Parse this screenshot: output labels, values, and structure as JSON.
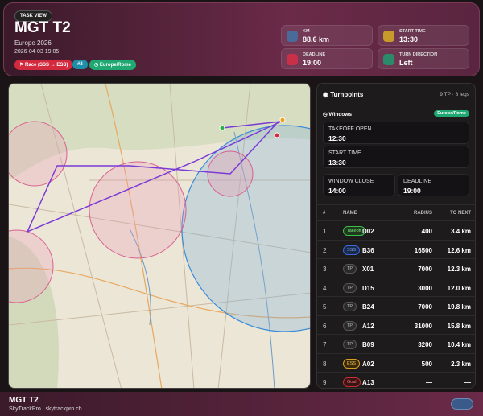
{
  "header": {
    "tag": "TASK VIEW",
    "title": "MGT T2",
    "subtitle": "Europe 2026",
    "datetime": "2026-04-03 19:05",
    "badges": [
      "Race (SSS → ESS)",
      "#2",
      "Europe/Rome"
    ]
  },
  "stats": [
    {
      "label": "KM",
      "value": "88.6 km"
    },
    {
      "label": "START TIME",
      "value": "13:30"
    },
    {
      "label": "DEADLINE",
      "value": "19:00"
    },
    {
      "label": "TURN DIRECTION",
      "value": "Left"
    }
  ],
  "turnpoints": {
    "title": "Turnpoints",
    "summary": "9 TP · 8 legs",
    "windows": {
      "title": "Windows",
      "timezone": "Europe/Rome",
      "items": [
        {
          "label": "TAKEOFF OPEN",
          "value": "12:30"
        },
        {
          "label": "START TIME",
          "value": "13:30"
        },
        {
          "label": "WINDOW CLOSE",
          "value": "14:00"
        },
        {
          "label": "DEADLINE",
          "value": "19:00"
        }
      ]
    },
    "columns": [
      "#",
      "NAME",
      "RADIUS",
      "TO NEXT"
    ],
    "rows": [
      [
        1,
        "Takeoff",
        "D02",
        400,
        "3.4 km"
      ],
      [
        2,
        "SSS",
        "B36",
        16500,
        "12.6 km"
      ],
      [
        3,
        "TP",
        "X01",
        7000,
        "12.3 km"
      ],
      [
        4,
        "TP",
        "D15",
        3000,
        "12.0 km"
      ],
      [
        5,
        "TP",
        "B24",
        7000,
        "19.8 km"
      ],
      [
        6,
        "TP",
        "A12",
        31000,
        "15.8 km"
      ],
      [
        7,
        "TP",
        "B09",
        3200,
        "10.4 km"
      ],
      [
        8,
        "ESS",
        "A02",
        500,
        "2.3 km"
      ],
      [
        9,
        "Goal",
        "A13",
        "—",
        "—"
      ]
    ]
  },
  "footer": {
    "title": "MGT T2",
    "subtitle": "SkyTrackPro | skytrackpro.ch"
  }
}
